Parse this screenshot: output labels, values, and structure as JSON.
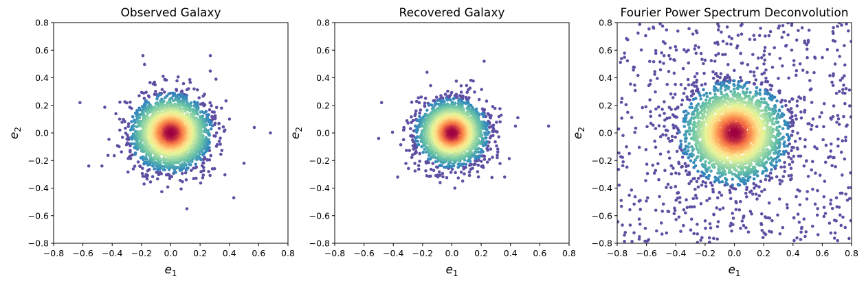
{
  "chart_data": [
    {
      "type": "scatter",
      "title": "Observed Galaxy",
      "xlabel": {
        "base": "e",
        "sub": "1"
      },
      "ylabel": {
        "base": "e",
        "sub": "2"
      },
      "xlim": [
        -0.8,
        0.8
      ],
      "ylim": [
        -0.8,
        0.8
      ],
      "xticks": [
        "−0.8",
        "−0.6",
        "−0.4",
        "−0.2",
        "0.0",
        "0.2",
        "0.4",
        "0.6",
        "0.8"
      ],
      "yticks": [
        "−0.8",
        "−0.6",
        "−0.4",
        "−0.2",
        "0.0",
        "0.2",
        "0.4",
        "0.6",
        "0.8"
      ],
      "distribution": {
        "center": [
          0.0,
          0.0
        ],
        "sigma": 0.13,
        "n_points": 2600,
        "seed": 11
      },
      "outliers": [
        [
          -0.62,
          0.22
        ],
        [
          0.68,
          0.0
        ],
        [
          -0.56,
          -0.24
        ],
        [
          0.57,
          0.04
        ],
        [
          0.43,
          -0.47
        ],
        [
          -0.19,
          0.56
        ],
        [
          0.27,
          0.56
        ],
        [
          0.11,
          -0.55
        ],
        [
          0.5,
          -0.22
        ],
        [
          -0.47,
          -0.24
        ]
      ],
      "colormap": "Spectral",
      "grid": false
    },
    {
      "type": "scatter",
      "title": "Recovered Galaxy",
      "xlabel": {
        "base": "e",
        "sub": "1"
      },
      "ylabel": {
        "base": "e",
        "sub": "2"
      },
      "xlim": [
        -0.8,
        0.8
      ],
      "ylim": [
        -0.8,
        0.8
      ],
      "xticks": [
        "−0.8",
        "−0.6",
        "−0.4",
        "−0.2",
        "0.0",
        "0.2",
        "0.4",
        "0.6",
        "0.8"
      ],
      "yticks": [
        "−0.8",
        "−0.6",
        "−0.4",
        "−0.2",
        "0.0",
        "0.2",
        "0.4",
        "0.6",
        "0.8"
      ],
      "distribution": {
        "center": [
          0.0,
          0.0
        ],
        "sigma": 0.115,
        "n_points": 2400,
        "seed": 23
      },
      "outliers": [
        [
          0.66,
          0.05
        ],
        [
          -0.48,
          0.22
        ],
        [
          -0.5,
          -0.04
        ],
        [
          -0.17,
          0.44
        ],
        [
          0.22,
          0.52
        ],
        [
          0.45,
          0.11
        ],
        [
          -0.37,
          -0.32
        ],
        [
          0.02,
          -0.4
        ],
        [
          0.36,
          -0.32
        ]
      ],
      "colormap": "Spectral",
      "grid": false
    },
    {
      "type": "scatter",
      "title": "Fourier Power Spectrum Deconvolution",
      "xlabel": {
        "base": "e",
        "sub": "1"
      },
      "ylabel": {
        "base": "e",
        "sub": "2"
      },
      "xlim": [
        -0.8,
        0.8
      ],
      "ylim": [
        -0.8,
        0.8
      ],
      "xticks": [
        "−0.8",
        "−0.6",
        "−0.4",
        "−0.2",
        "0.0",
        "0.2",
        "0.4",
        "0.6",
        "0.8"
      ],
      "yticks": [
        "−0.8",
        "−0.6",
        "−0.4",
        "−0.2",
        "0.0",
        "0.2",
        "0.4",
        "0.6",
        "0.8"
      ],
      "distribution": {
        "center": [
          0.0,
          0.0
        ],
        "sigma": 0.17,
        "n_points": 2600,
        "seed": 37,
        "uniform_background": 650
      },
      "outliers": [],
      "colormap": "Spectral",
      "grid": false
    }
  ]
}
